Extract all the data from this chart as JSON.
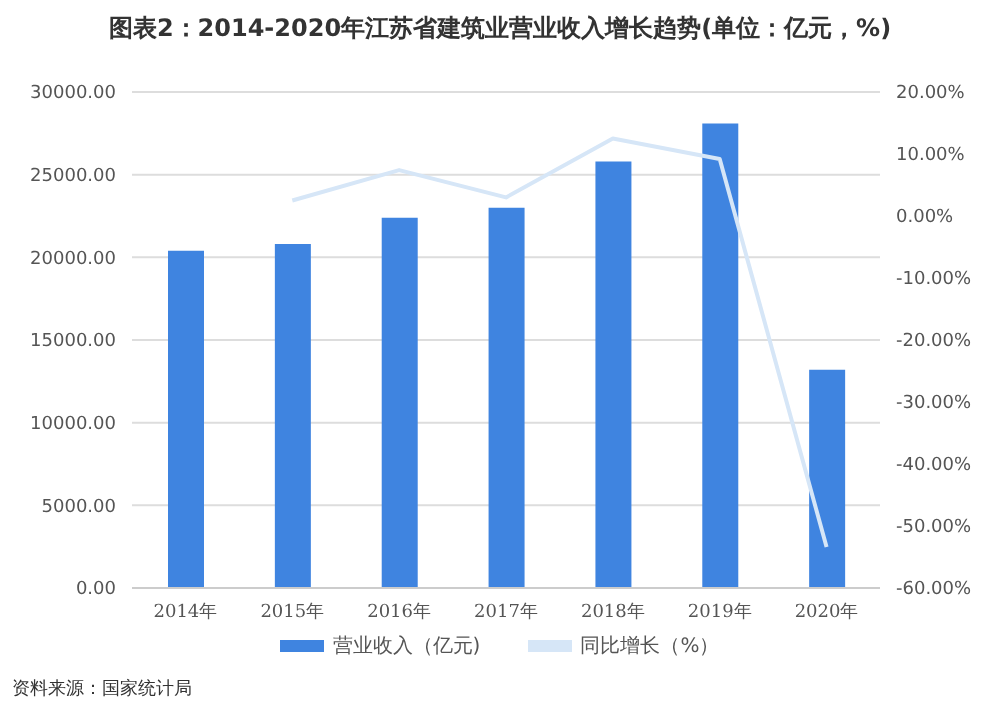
{
  "chart_data": {
    "type": "bar",
    "title": "图表2：2014-2020年江苏省建筑业营业收入增长趋势(单位：亿元，%)",
    "categories": [
      "2014年",
      "2015年",
      "2016年",
      "2017年",
      "2018年",
      "2019年",
      "2020年"
    ],
    "series": [
      {
        "name": "营业收入（亿元)",
        "color": "#3f84e0",
        "values": [
          20400,
          20800,
          22400,
          23000,
          25800,
          28100,
          13200
        ]
      },
      {
        "name": "同比增长（%）",
        "type": "line",
        "axis": "y2",
        "color": "#d6e6f7",
        "marker": "none",
        "values": [
          null,
          2.5,
          7.4,
          3.0,
          12.5,
          9.2,
          -53.4
        ]
      }
    ],
    "ylim": [
      0,
      30000
    ],
    "yticks": [
      {
        "value": 0,
        "label": "0.00"
      },
      {
        "value": 5000,
        "label": "5000.00"
      },
      {
        "value": 10000,
        "label": "10000.00"
      },
      {
        "value": 15000,
        "label": "15000.00"
      },
      {
        "value": 20000,
        "label": "20000.00"
      },
      {
        "value": 25000,
        "label": "25000.00"
      },
      {
        "value": 30000,
        "label": "30000.00"
      }
    ],
    "y2lim": [
      -60,
      20
    ],
    "y2ticks": [
      {
        "value": -60,
        "label": "-60.00%"
      },
      {
        "value": -50,
        "label": "-50.00%"
      },
      {
        "value": -40,
        "label": "-40.00%"
      },
      {
        "value": -30,
        "label": "-30.00%"
      },
      {
        "value": -20,
        "label": "-20.00%"
      },
      {
        "value": -10,
        "label": "-10.00%"
      },
      {
        "value": 0,
        "label": "0.00%"
      },
      {
        "value": 10,
        "label": "10.00%"
      },
      {
        "value": 20,
        "label": "20.00%"
      }
    ],
    "grid": "y",
    "legend": "bottom",
    "annotations": [
      "资料来源：国家统计局"
    ]
  }
}
